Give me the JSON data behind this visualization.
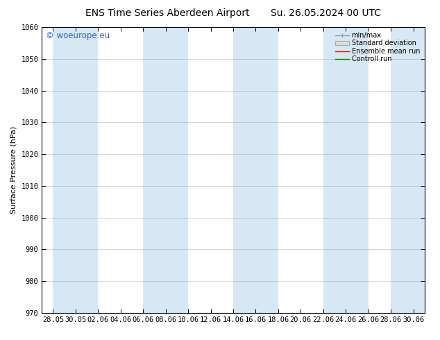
{
  "title": "ENS Time Series Aberdeen Airport",
  "title2": "Su. 26.05.2024 00 UTC",
  "ylabel": "Surface Pressure (hPa)",
  "ylim": [
    970,
    1060
  ],
  "yticks": [
    970,
    980,
    990,
    1000,
    1010,
    1020,
    1030,
    1040,
    1050,
    1060
  ],
  "x_tick_labels": [
    "28.05",
    "30.05",
    "02.06",
    "04.06",
    "06.06",
    "08.06",
    "10.06",
    "12.06",
    "14.06",
    "16.06",
    "18.06",
    "20.06",
    "22.06",
    "24.06",
    "26.06",
    "28.06",
    "30.06"
  ],
  "background_color": "#ffffff",
  "plot_bg_color": "#ffffff",
  "band_color": "#d6e8f5",
  "watermark": "© woeurope.eu",
  "legend_labels": [
    "min/max",
    "Standard deviation",
    "Ensemble mean run",
    "Controll run"
  ],
  "legend_colors": [
    "#999999",
    "#cccccc",
    "#ff0000",
    "#008000"
  ],
  "title_fontsize": 10,
  "axis_fontsize": 8,
  "tick_fontsize": 7.5,
  "band_indices": [
    0,
    2,
    4,
    6,
    8,
    10,
    12,
    14,
    16
  ]
}
